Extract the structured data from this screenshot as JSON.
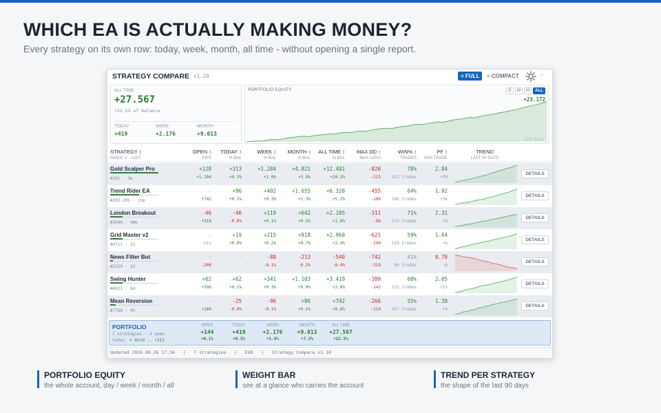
{
  "headline": "WHICH EA IS ACTUALLY MAKING MONEY?",
  "subline": "Every strategy on its own row: today, week, month, all time - without opening a single report.",
  "panel": {
    "title": "STRATEGY COMPARE",
    "version": "v1.10",
    "full_label": "≡ FULL",
    "compact_label": "≡ COMPACT",
    "menu_label": "-"
  },
  "summary": {
    "label": "ALL TIME",
    "value": "+27.567",
    "pct": "+22.5% of balance",
    "today_label": "TODAY",
    "today_value": "+419",
    "week_label": "WEEK",
    "week_value": "+2.176",
    "month_label": "MONTH",
    "month_value": "+9.013"
  },
  "equity": {
    "label": "PORTFOLIO EQUITY",
    "tabs": [
      "D",
      "W",
      "M",
      "ALL"
    ],
    "active_tab": "ALL",
    "value": "+23.172",
    "days": "120 days",
    "series": [
      0,
      1,
      2,
      2,
      4,
      6,
      5,
      7,
      10,
      11,
      13,
      14,
      13,
      15,
      17,
      18,
      20,
      19,
      22,
      24,
      23,
      25,
      27,
      26,
      29,
      31,
      33,
      34,
      33,
      36,
      38,
      39,
      42,
      44,
      43,
      46,
      48,
      50,
      49,
      52,
      55,
      57,
      58,
      61,
      60,
      63,
      66,
      68,
      70,
      73,
      75,
      78,
      80,
      84,
      87,
      90,
      93,
      97,
      100
    ]
  },
  "headers": {
    "strategy": "STRATEGY ↕",
    "strategy_sub": "MAGIC # · LAST",
    "open": "OPEN ↕",
    "open_sub": "PIPS",
    "today": "TODAY ↕",
    "today_sub": "% BAL",
    "week": "WEEK ↕",
    "week_sub": "% BAL",
    "month": "MONTH ↕",
    "month_sub": "% BAL",
    "alltime": "ALL TIME ↕",
    "alltime_sub": "% BAL",
    "maxdd": "MAX DD ↕",
    "maxdd_sub": "MAX LOSS",
    "win": "WIN% ↕",
    "win_sub": "TRADES",
    "pf": "PF ↕",
    "pf_sub": "AVG TRADE",
    "trend": "TREND",
    "trend_sub": "LAST 90 DAYS"
  },
  "details_label": "DETAILS",
  "rows": [
    {
      "name": "Gold Scalper Pro",
      "magic": "#101  ·  3m",
      "weight": 1.0,
      "color": "#2e7d32",
      "open": "+128",
      "open_sub": "+1.284",
      "today": "+313",
      "today_sub": "+0.3%",
      "week": "+1.284",
      "week_sub": "+1.0%",
      "month": "+4.821",
      "month_sub": "+3.9%",
      "all": "+12.481",
      "all_sub": "+10.2%",
      "dd": "-820",
      "dd_sub": "-215",
      "win": "78%",
      "trades": "412 trades",
      "pf": "2.84",
      "avg": "+30",
      "trend": [
        5,
        8,
        12,
        14,
        17,
        20,
        22,
        26,
        30,
        33,
        37,
        40,
        44,
        47,
        52,
        57,
        60,
        65,
        70,
        73,
        78,
        82,
        86,
        90,
        95,
        100
      ]
    },
    {
      "name": "Trend Rider EA",
      "magic": "#202-205  ·  15m",
      "weight": 0.6,
      "color": "#2e7d32",
      "open": "-",
      "open_sub": "+742",
      "today": "+96",
      "today_sub": "+0.1%",
      "week": "+402",
      "week_sub": "+0.3%",
      "month": "+1.655",
      "month_sub": "+1.3%",
      "all": "+6.320",
      "all_sub": "+5.2%",
      "dd": "-455",
      "dd_sub": "-180",
      "win": "64%",
      "trades": "186 trades",
      "pf": "1.92",
      "avg": "+34",
      "trend": [
        2,
        6,
        10,
        12,
        15,
        14,
        18,
        22,
        25,
        28,
        30,
        32,
        36,
        40,
        42,
        46,
        50,
        54,
        58,
        62,
        66,
        70,
        74,
        80,
        85,
        90
      ]
    },
    {
      "name": "London Breakout",
      "magic": "#3040  ·  40m",
      "weight": 0.25,
      "color": "#2e7d32",
      "open": "-46",
      "open_sub": "+318",
      "today": "-46",
      "today_sub": "-0.0%",
      "week": "+119",
      "week_sub": "+0.1%",
      "month": "+642",
      "month_sub": "+0.5%",
      "all": "+2.185",
      "all_sub": "+1.8%",
      "dd": "-311",
      "dd_sub": "-96",
      "win": "71%",
      "trades": "274 trades",
      "pf": "2.31",
      "avg": "+8",
      "trend": [
        3,
        5,
        8,
        10,
        14,
        16,
        18,
        20,
        24,
        26,
        30,
        32,
        34,
        36,
        40,
        44,
        46,
        48,
        52,
        55,
        58,
        60,
        64,
        66,
        70,
        72
      ]
    },
    {
      "name": "Grid Master v2",
      "magic": "#4711  ·  1h",
      "weight": 0.25,
      "color": "#2e7d32",
      "open": "-",
      "open_sub": "mix",
      "today": "+19",
      "today_sub": "+0.0%",
      "week": "+215",
      "week_sub": "+0.2%",
      "month": "+918",
      "month_sub": "+0.7%",
      "all": "+2.960",
      "all_sub": "+2.4%",
      "dd": "-621",
      "dd_sub": "-249",
      "win": "59%",
      "trades": "519 trades",
      "pf": "1.64",
      "avg": "+6",
      "trend": [
        4,
        6,
        10,
        14,
        16,
        18,
        24,
        26,
        30,
        33,
        35,
        38,
        42,
        44,
        46,
        52,
        54,
        56,
        60,
        64,
        66,
        70,
        74,
        76,
        82,
        86
      ]
    },
    {
      "name": "News Filter Bot",
      "magic": "#5150  ·  1d",
      "weight": 0.05,
      "color": "#c62828",
      "open": "-",
      "open_sub": "-208",
      "today": "-",
      "today_sub": "-",
      "week": "-88",
      "week_sub": "-0.1%",
      "month": "-213",
      "month_sub": "-0.2%",
      "all": "-540",
      "all_sub": "-0.4%",
      "dd": "-742",
      "dd_sub": "-319",
      "win": "41%",
      "trades": "94 trades",
      "pf": "0.78",
      "avg": "-6",
      "trend": [
        90,
        88,
        86,
        82,
        80,
        78,
        76,
        74,
        70,
        66,
        62,
        58,
        56,
        54,
        50,
        46,
        42,
        40,
        36,
        32,
        28,
        24,
        22,
        20,
        18,
        16
      ]
    },
    {
      "name": "Swing Hunter",
      "magic": "#6021  ·  5m",
      "weight": 0.25,
      "color": "#2e7d32",
      "open": "+62",
      "open_sub": "+596",
      "today": "+62",
      "today_sub": "+0.1%",
      "week": "+341",
      "week_sub": "+0.3%",
      "month": "+1.103",
      "month_sub": "+0.9%",
      "all": "+3.419",
      "all_sub": "+2.8%",
      "dd": "-389",
      "dd_sub": "-142",
      "win": "68%",
      "trades": "233 trades",
      "pf": "2.05",
      "avg": "+15",
      "trend": [
        4,
        6,
        10,
        12,
        18,
        20,
        24,
        26,
        30,
        34,
        40,
        42,
        44,
        46,
        50,
        54,
        56,
        60,
        62,
        66,
        70,
        74,
        76,
        80,
        86,
        90
      ]
    },
    {
      "name": "Mean Reversion",
      "magic": "#7788  ·  4h",
      "weight": 0.12,
      "color": "#2e7d32",
      "open": "-",
      "open_sub": "+184",
      "today": "-25",
      "today_sub": "-0.0%",
      "week": "-96",
      "week_sub": "-0.1%",
      "month": "+86",
      "month_sub": "+0.1%",
      "all": "+742",
      "all_sub": "+0.6%",
      "dd": "-266",
      "dd_sub": "-119",
      "win": "55%",
      "trades": "167 trades",
      "pf": "1.38",
      "avg": "+4",
      "trend": [
        6,
        8,
        12,
        18,
        20,
        22,
        28,
        30,
        32,
        40,
        42,
        44,
        50,
        52,
        54,
        60,
        62,
        64,
        70,
        72,
        74,
        78,
        80,
        84,
        88,
        92
      ]
    }
  ],
  "portfolio": {
    "title": "PORTFOLIO",
    "sub": "7 strategies  ·  3 open",
    "today_prefix": "today: ",
    "today_detail": "+ Gold .. +313",
    "open_label": "OPEN",
    "open": "+144",
    "open_pct": "+0.1%",
    "today_label": "TODAY",
    "today": "+419",
    "today_pct": "+0.3%",
    "week_label": "WEEK",
    "week": "+2.176",
    "week_pct": "+1.8%",
    "month_label": "MONTH",
    "month": "+9.013",
    "month_pct": "+7.3%",
    "all_label": "ALL TIME",
    "all": "+27.567",
    "all_pct": "+22.5%"
  },
  "footer": "Updated 2026.08.26 17:34   |   7 strategies   |   EUR   |   Strategy Compare v1.10",
  "callouts": [
    {
      "title": "PORTFOLIO EQUITY",
      "desc": "the whole account, day / week / month / all"
    },
    {
      "title": "WEIGHT BAR",
      "desc": "see at a glance who carries the account"
    },
    {
      "title": "TREND PER STRATEGY",
      "desc": "the shape of the last 90 days"
    }
  ]
}
